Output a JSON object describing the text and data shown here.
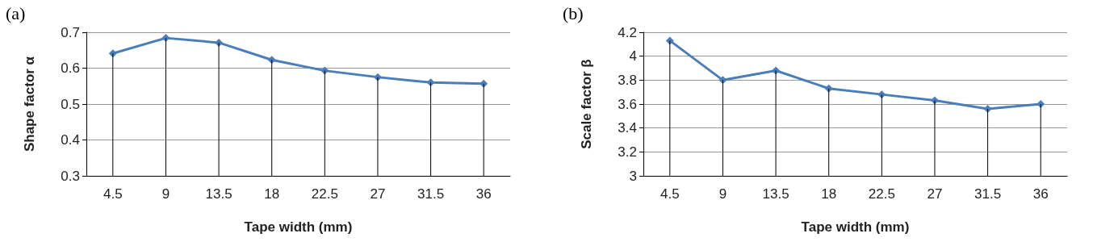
{
  "chart_data": [
    {
      "type": "line",
      "title": "(a)",
      "xlabel": "Tape width (mm)",
      "ylabel": "Shape factor α",
      "categories": [
        "4.5",
        "9",
        "13.5",
        "18",
        "22.5",
        "27",
        "31.5",
        "36"
      ],
      "series": [
        {
          "color": "#4a7ebb",
          "values": [
            0.641,
            0.684,
            0.671,
            0.623,
            0.593,
            0.575,
            0.56,
            0.557
          ]
        },
        {
          "type": "bar",
          "color": "#000000",
          "values": [
            0.641,
            0.684,
            0.671,
            0.623,
            0.593,
            0.575,
            0.56,
            0.557
          ]
        }
      ],
      "ylim": [
        0.3,
        0.7
      ],
      "yticks": [
        0.3,
        0.4,
        0.5,
        0.6,
        0.7
      ],
      "grid": "y",
      "marker": "diamond",
      "line_style": "solid"
    },
    {
      "type": "line",
      "title": "(b)",
      "xlabel": "Tape width (mm)",
      "ylabel": "Scale factor β",
      "categories": [
        "4.5",
        "9",
        "13.5",
        "18",
        "22.5",
        "27",
        "31.5",
        "36"
      ],
      "series": [
        {
          "color": "#4a7ebb",
          "values": [
            4.13,
            3.8,
            3.88,
            3.73,
            3.68,
            3.63,
            3.56,
            3.6
          ]
        },
        {
          "type": "bar",
          "color": "#000000",
          "values": [
            4.13,
            3.8,
            3.88,
            3.73,
            3.68,
            3.63,
            3.56,
            3.6
          ]
        }
      ],
      "ylim": [
        3,
        4.2
      ],
      "yticks": [
        3,
        3.2,
        3.4,
        3.6,
        3.8,
        4,
        4.2
      ],
      "grid": "y",
      "marker": "diamond",
      "line_style": "solid"
    }
  ]
}
